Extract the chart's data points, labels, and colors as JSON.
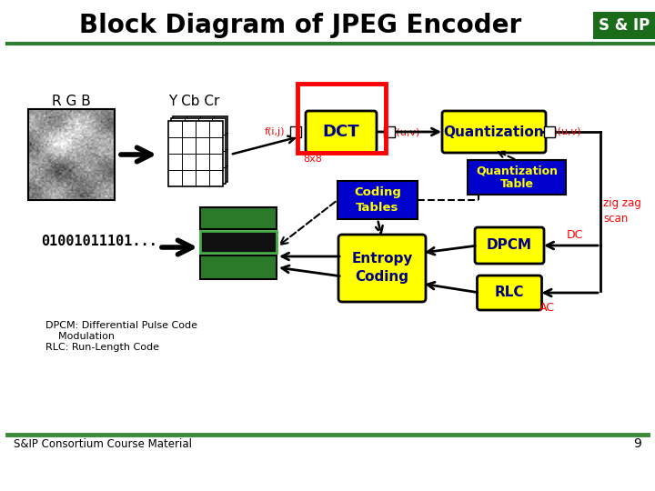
{
  "title": "Block Diagram of JPEG Encoder",
  "title_color": "#000000",
  "title_fontsize": 20,
  "bg_color": "#ffffff",
  "logo_bg": "#1a6b1a",
  "logo_text": "S & IP",
  "footer_text": "S&IP Consortium Course Material",
  "footer_num": "9",
  "rgb_label": "R G B",
  "ycbcr_label": "Y Cb Cr",
  "binary_text": "01001011101...",
  "dpcm_note1": "DPCM: Differential Pulse Code",
  "dpcm_note2": "    Modulation",
  "dpcm_note3": "RLC: Run-Length Code",
  "yellow": "#ffff00",
  "dark_blue": "#0000cc",
  "navy": "#000080",
  "red": "#ff0000",
  "green_dark": "#1a7a1a",
  "green_logo": "#1a6b1a",
  "green_line": "#2e7d32",
  "black": "#000000",
  "white": "#ffffff"
}
